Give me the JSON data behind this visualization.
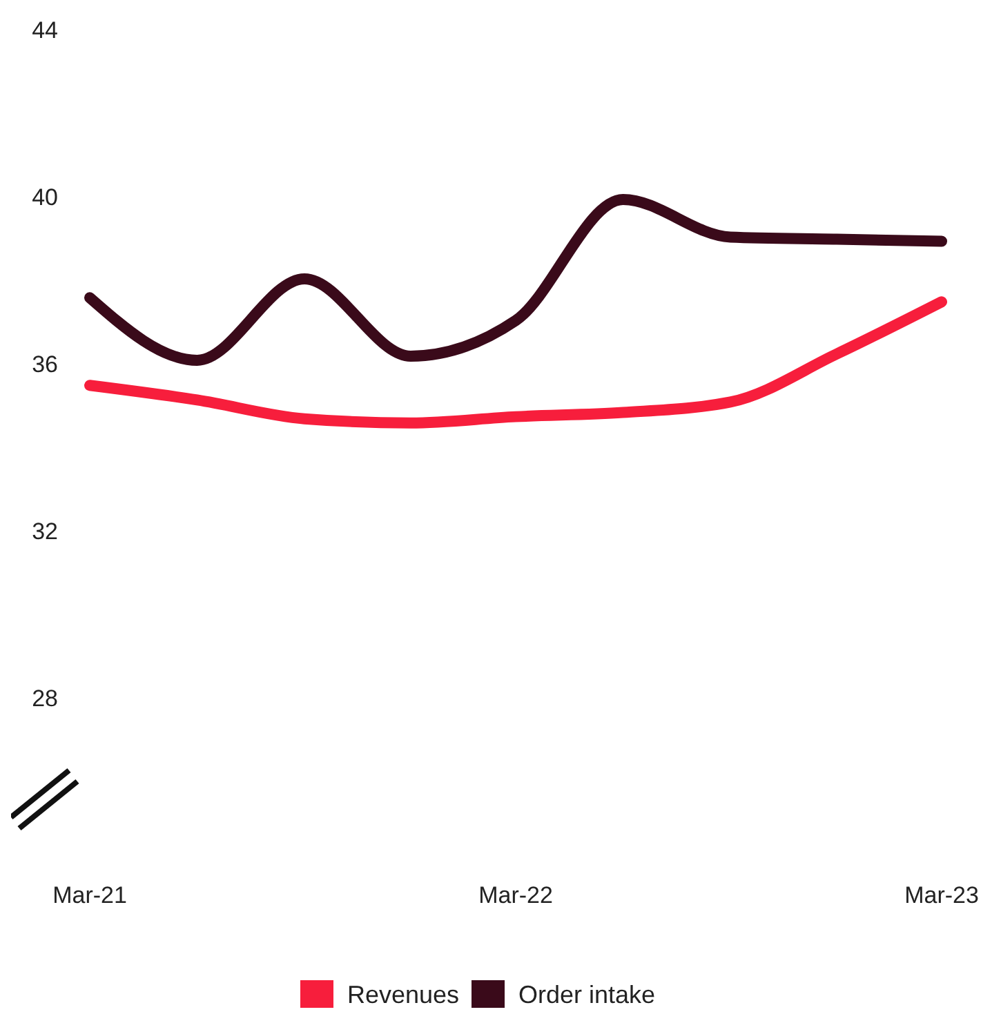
{
  "chart_data": {
    "type": "line",
    "x": [
      "2021-03",
      "2021-06",
      "2021-09",
      "2021-12",
      "2022-03",
      "2022-06",
      "2022-09",
      "2022-12",
      "2023-03"
    ],
    "series": [
      {
        "name": "Revenues",
        "color": "#f71e3c",
        "values": [
          35.5,
          35.15,
          34.7,
          34.6,
          34.75,
          34.85,
          35.1,
          36.25,
          37.5
        ]
      },
      {
        "name": "Order intake",
        "color": "#3a0a1a",
        "values": [
          37.6,
          36.1,
          38.05,
          36.2,
          37.05,
          39.95,
          39.05,
          39.0,
          38.95
        ]
      }
    ],
    "xlim": [
      "2021-03",
      "2023-03"
    ],
    "xticks": [
      {
        "value": "2021-03",
        "label": "Mar-21"
      },
      {
        "value": "2022-03",
        "label": "Mar-22"
      },
      {
        "value": "2023-03",
        "label": "Mar-23"
      }
    ],
    "ylim": [
      28,
      44
    ],
    "yticks": [
      28,
      32,
      36,
      40,
      44
    ],
    "grid": false,
    "legend": "bottom",
    "marker": "none",
    "line_style": "solid"
  }
}
